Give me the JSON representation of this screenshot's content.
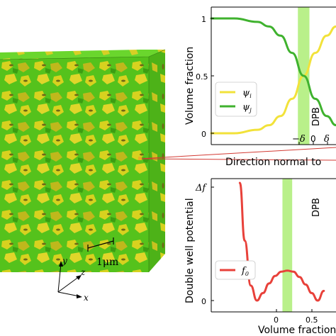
{
  "figure": {
    "micrograph": {
      "scale_bar_label": "1μm",
      "axes": {
        "y": "y",
        "z": "z",
        "x": "x"
      },
      "colors": {
        "green": "#55c21c",
        "yellow": "#d7d21f"
      }
    },
    "top_plot": {
      "ylabel": "Volume fraction",
      "xlabel": "Direction normal to",
      "yticks": [
        "0",
        "0.5",
        "1"
      ],
      "xticks": [
        "−δ",
        "0",
        "δ"
      ],
      "band_label": "DPB",
      "legend": [
        {
          "label": "ψ",
          "sub": "i",
          "color": "#f2e23a"
        },
        {
          "label": "ψ",
          "sub": "j",
          "color": "#3fb22e"
        }
      ]
    },
    "bottom_plot": {
      "ylabel": "Double well potential",
      "xlabel": "Volume fraction",
      "yticks": [
        "0",
        "Δf"
      ],
      "xticks": [
        "0",
        "0.5"
      ],
      "band_label": "DPB",
      "legend": [
        {
          "label": "f",
          "sub": "0",
          "color": "#e8413a"
        }
      ]
    }
  },
  "chart_data": [
    {
      "type": "line",
      "title": "",
      "xlabel": "Direction normal to",
      "ylabel": "Volume fraction",
      "ylim": [
        0,
        1
      ],
      "xlim": [
        -4,
        1.4
      ],
      "x_tick_labels": [
        "−δ",
        "0",
        "δ"
      ],
      "band": {
        "from": -0.25,
        "to": 0.25,
        "label": "DPB",
        "color": "#b9f08a"
      },
      "series": [
        {
          "name": "ψi",
          "color": "#f2e23a",
          "x": [
            -4,
            -3,
            -2,
            -1.5,
            -1,
            -0.5,
            0,
            0.5,
            1,
            1.4
          ],
          "y": [
            0,
            0,
            0.03,
            0.07,
            0.15,
            0.3,
            0.5,
            0.7,
            0.85,
            0.93
          ]
        },
        {
          "name": "ψj",
          "color": "#3fb22e",
          "x": [
            -4,
            -3,
            -2,
            -1.5,
            -1,
            -0.5,
            0,
            0.5,
            1,
            1.4
          ],
          "y": [
            1,
            1,
            0.97,
            0.93,
            0.85,
            0.7,
            0.5,
            0.3,
            0.15,
            0.07
          ]
        }
      ],
      "legend_position": "lower-left",
      "grid": false
    },
    {
      "type": "line",
      "title": "",
      "xlabel": "Volume fraction",
      "ylabel": "Double well potential",
      "xlim": [
        -0.75,
        1.3
      ],
      "ylim": [
        0,
        1.1
      ],
      "x_tick_labels": [
        "0",
        "0.5"
      ],
      "y_tick_labels": [
        "0",
        "Δf"
      ],
      "band": {
        "from": 0.42,
        "to": 0.58,
        "label": "DPB",
        "color": "#b9f08a"
      },
      "series": [
        {
          "name": "f0",
          "color": "#e8413a",
          "x": [
            -0.28,
            -0.2,
            -0.1,
            0,
            0.1,
            0.2,
            0.3,
            0.4,
            0.5,
            0.6,
            0.7,
            0.8,
            0.9,
            1.0,
            1.1
          ],
          "y": [
            1.1,
            0.56,
            0.14,
            0,
            0.07,
            0.16,
            0.23,
            0.27,
            0.28,
            0.27,
            0.22,
            0.15,
            0.07,
            0,
            0.09
          ]
        }
      ],
      "legend_position": "lower-left",
      "grid": false
    }
  ]
}
